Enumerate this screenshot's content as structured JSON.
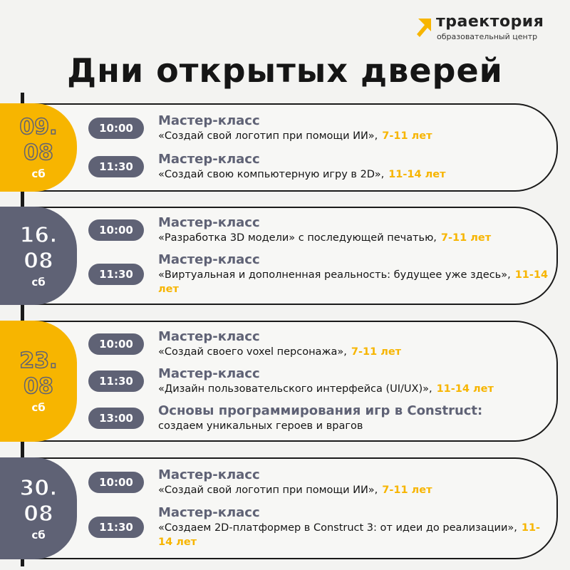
{
  "logo": {
    "name": "траектория",
    "subtitle": "образовательный центр"
  },
  "title": "Дни открытых дверей",
  "days": [
    {
      "day": "09.",
      "month": "08",
      "weekday": "сб",
      "events": [
        {
          "time": "10:00",
          "heading": "Мастер-класс",
          "description": "«Создай свой логотип при помощи ИИ»,",
          "age": "7-11 лет"
        },
        {
          "time": "11:30",
          "heading": "Мастер-класс",
          "description": "«Создай свою компьютерную игру в 2D»,",
          "age": "11-14 лет"
        }
      ]
    },
    {
      "day": "16.",
      "month": "08",
      "weekday": "сб",
      "events": [
        {
          "time": "10:00",
          "heading": "Мастер-класс",
          "description": "«Разработка 3D модели» с последующей печатью,",
          "age": "7-11 лет"
        },
        {
          "time": "11:30",
          "heading": "Мастер-класс",
          "description": "«Виртуальная и дополненная реальность: будущее уже здесь»,",
          "age": "11-14 лет"
        }
      ]
    },
    {
      "day": "23.",
      "month": "08",
      "weekday": "сб",
      "events": [
        {
          "time": "10:00",
          "heading": "Мастер-класс",
          "description": "«Создай своего voxel персонажа»,",
          "age": "7-11 лет"
        },
        {
          "time": "11:30",
          "heading": "Мастер-класс",
          "description": "«Дизайн пользовательского интерфейса (UI/UX)»,",
          "age": "11-14 лет"
        },
        {
          "time": "13:00",
          "heading": "Основы программирования игр в Construct:",
          "description": "создаем уникальных героев и врагов"
        }
      ]
    },
    {
      "day": "30.",
      "month": "08",
      "weekday": "сб",
      "events": [
        {
          "time": "10:00",
          "heading": "Мастер-класс",
          "description": "«Создай свой логотип при помощи ИИ»,",
          "age": "7-11 лет"
        },
        {
          "time": "11:30",
          "heading": "Мастер-класс",
          "description": "«Создаем 2D-платформер в Construct 3: от идеи до реализации»,",
          "age": "11-14 лет"
        }
      ]
    }
  ]
}
